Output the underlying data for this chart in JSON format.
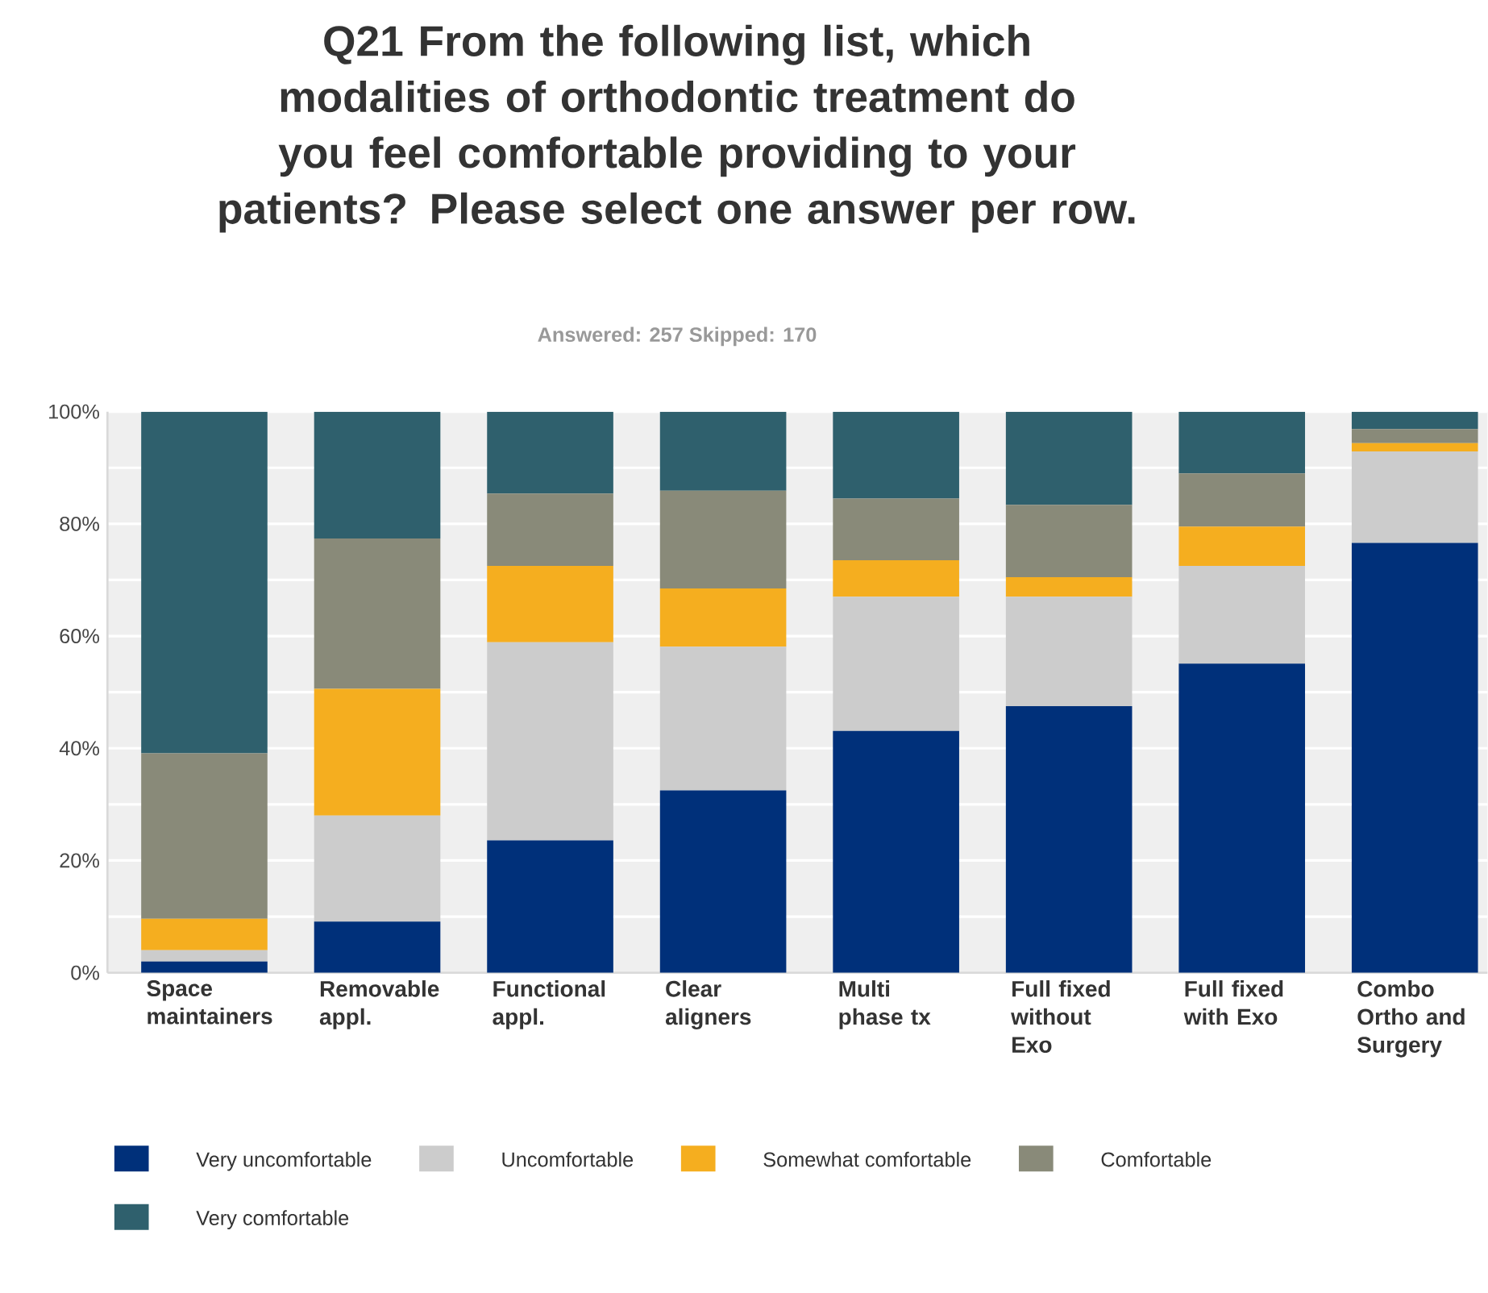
{
  "chart_data": {
    "type": "bar",
    "stacked": true,
    "title": "Q21 From the following list, which modalities of orthodontic treatment do you feel comfortable providing to your patients? Please select one answer per row.",
    "subtitle": "Answered: 257    Skipped: 170",
    "categories": [
      "Space maintainers",
      "Removable appl.",
      "Functional appl.",
      "Clear aligners",
      "Multi phase tx",
      "Full fixed without Exo",
      "Full fixed with Exo",
      "Combo Ortho and Surgery"
    ],
    "series": [
      {
        "name": "Very uncomfortable",
        "color": "#00307a",
        "values": [
          2.0,
          9.1,
          23.6,
          32.5,
          43.1,
          47.5,
          55.1,
          76.6
        ]
      },
      {
        "name": "Uncomfortable",
        "color": "#cccccc",
        "values": [
          2.0,
          18.9,
          35.3,
          25.6,
          23.9,
          19.5,
          17.4,
          16.3
        ]
      },
      {
        "name": "Somewhat comfortable",
        "color": "#f5ae1f",
        "values": [
          5.6,
          22.6,
          13.6,
          10.4,
          6.5,
          3.5,
          7.0,
          1.5
        ]
      },
      {
        "name": "Comfortable",
        "color": "#898a79",
        "values": [
          29.5,
          26.8,
          12.9,
          17.4,
          11.0,
          12.9,
          9.5,
          2.5
        ]
      },
      {
        "name": "Very comfortable",
        "color": "#2f606d",
        "values": [
          60.9,
          22.6,
          14.6,
          14.1,
          15.5,
          16.6,
          11.0,
          3.1
        ]
      }
    ],
    "ylim": [
      0,
      100
    ],
    "yticks": [
      {
        "value": 0,
        "label": "0%"
      },
      {
        "value": 20,
        "label": "20%"
      },
      {
        "value": 40,
        "label": "40%"
      },
      {
        "value": 60,
        "label": "60%"
      },
      {
        "value": 80,
        "label": "80%"
      },
      {
        "value": 100,
        "label": "100%"
      }
    ],
    "grid": "y",
    "legend": "bottom"
  }
}
